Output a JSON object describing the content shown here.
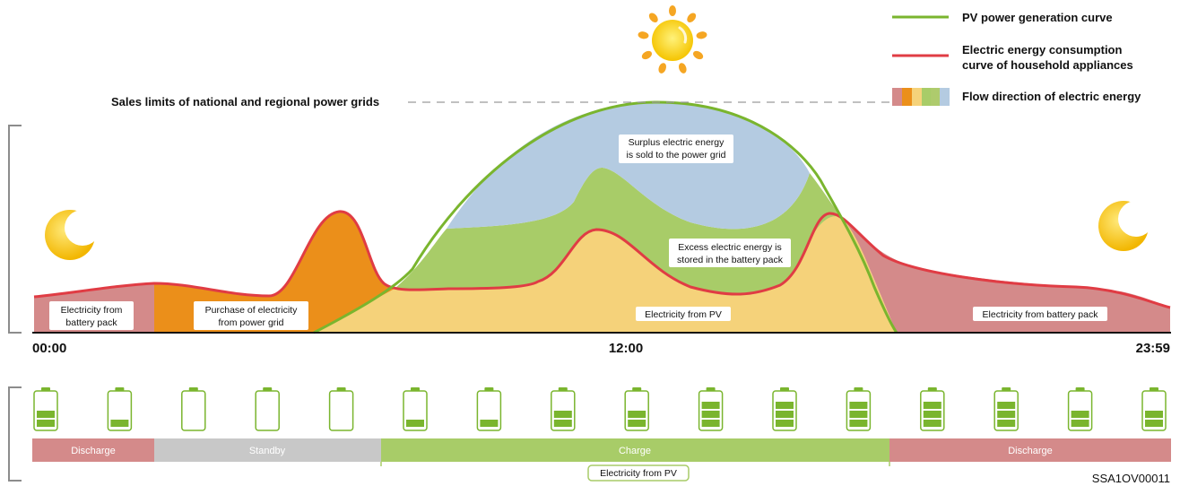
{
  "legend": [
    {
      "label": "PV power generation curve",
      "color": "#7ab52e"
    },
    {
      "label_line1": "Electric energy consumption",
      "label_line2": "curve of household appliances",
      "color": "#e03c44"
    },
    {
      "label": "Flow direction of electric energy",
      "swatches": [
        "#d48a8a",
        "#eb8f1a",
        "#f5d27a",
        "#a8cc68",
        "#aecb6d",
        "#b4cbe1"
      ]
    }
  ],
  "grid_limit_label": "Sales limits of national and regional power grids",
  "regions": {
    "surplus_line1": "Surplus electric energy",
    "surplus_line2": "is sold to the power grid",
    "excess_line1": "Excess electric energy is",
    "excess_line2": "stored in the battery pack",
    "battery_left_line1": "Electricity from",
    "battery_left_line2": "battery pack",
    "purchase_line1": "Purchase of electricity",
    "purchase_line2": "from power grid",
    "pv": "Electricity from PV",
    "battery_right": "Electricity from battery pack"
  },
  "time_axis": [
    "00:00",
    "12:00",
    "23:59"
  ],
  "battery_levels": [
    2,
    1,
    0,
    0,
    0,
    1,
    1,
    2,
    2,
    3,
    3,
    3,
    3,
    3,
    2,
    2
  ],
  "modes": [
    {
      "label": "Discharge",
      "color": "#d48a8a"
    },
    {
      "label": "Standby",
      "color": "#c8c8c8"
    },
    {
      "label": "Charge",
      "color": "#a8cc68"
    },
    {
      "label": "Discharge",
      "color": "#d48a8a"
    }
  ],
  "pv_source_label": "Electricity from PV",
  "figure_id": "SSA1OV00011",
  "colors": {
    "pv_curve": "#7ab52e",
    "load_curve": "#e03c44",
    "battery_region": "#d48a8a",
    "grid_region": "#eb8f1a",
    "pv_region": "#f5d27a",
    "storage_region": "#a8cc68",
    "sell_region": "#b4cbe1",
    "battery_icon": "#7ab52e"
  }
}
